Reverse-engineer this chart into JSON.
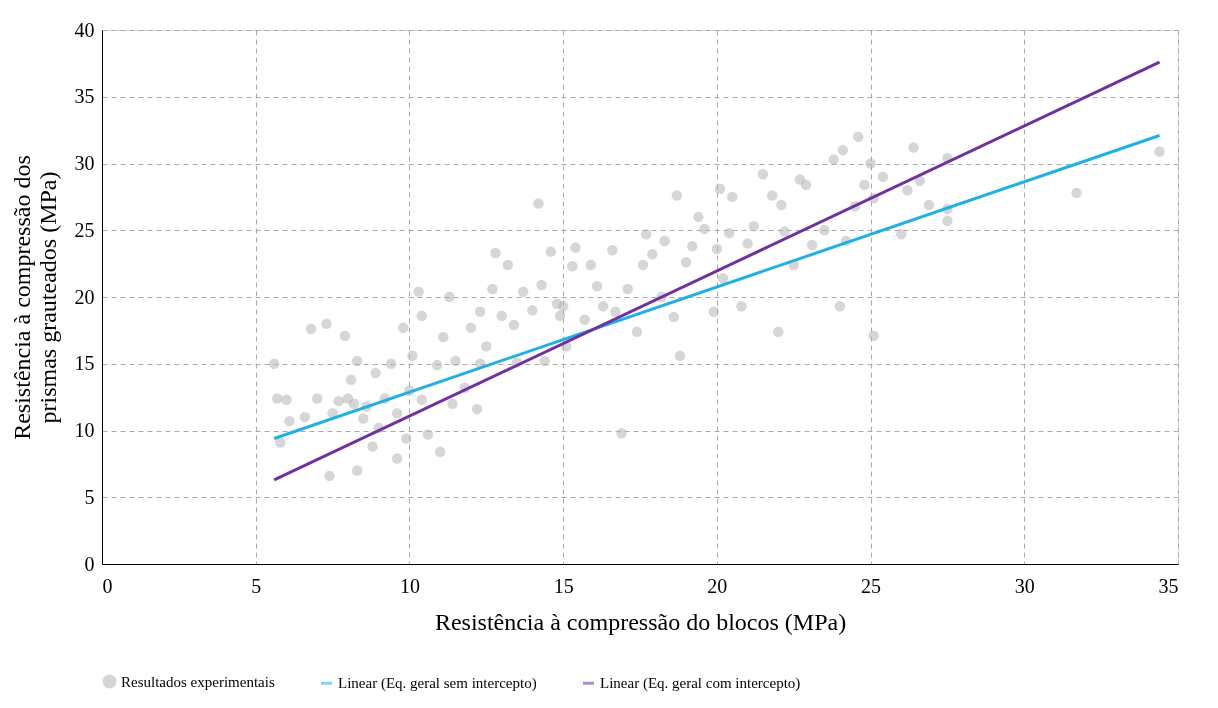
{
  "chart_data": {
    "type": "scatter",
    "xlabel": "Resistência à compressão do blocos (MPa)",
    "ylabel": "Resistência à compressão dos\nprismas grauteados (MPa)",
    "xlim": [
      0,
      35
    ],
    "xticks": [
      0,
      5,
      10,
      15,
      20,
      25,
      30,
      35
    ],
    "ylim": [
      0,
      40
    ],
    "yticks": [
      0,
      5,
      10,
      15,
      20,
      25,
      30,
      35,
      40
    ],
    "grid": true,
    "legend": "bottom",
    "series": [
      {
        "name": "Resultados experimentais",
        "marker": "circle",
        "color": "#b4b4b4",
        "x": [
          5.6,
          5.7,
          5.8,
          6.0,
          6.1,
          6.6,
          6.8,
          7.0,
          7.3,
          7.4,
          7.5,
          7.7,
          7.9,
          8.0,
          8.1,
          8.2,
          8.3,
          8.3,
          8.5,
          8.6,
          8.8,
          8.9,
          9.0,
          9.2,
          9.4,
          9.6,
          9.6,
          9.8,
          9.9,
          10.0,
          10.1,
          10.3,
          10.4,
          10.4,
          10.6,
          10.9,
          11.0,
          11.1,
          11.3,
          11.4,
          11.5,
          11.8,
          12.0,
          12.2,
          12.3,
          12.3,
          12.5,
          12.7,
          12.8,
          13.0,
          13.2,
          13.4,
          13.5,
          13.7,
          14.0,
          14.2,
          14.3,
          14.4,
          14.6,
          14.8,
          14.9,
          15.0,
          15.1,
          15.3,
          15.4,
          15.7,
          15.9,
          16.1,
          16.3,
          16.6,
          16.7,
          16.9,
          17.1,
          17.4,
          17.6,
          17.7,
          17.9,
          18.2,
          18.3,
          18.6,
          18.7,
          18.8,
          19.0,
          19.2,
          19.4,
          19.6,
          19.9,
          20.0,
          20.1,
          20.2,
          20.4,
          20.5,
          20.8,
          21.0,
          21.2,
          21.5,
          21.8,
          22.0,
          22.1,
          22.2,
          22.5,
          22.7,
          22.9,
          23.1,
          23.5,
          23.8,
          24.0,
          24.1,
          24.2,
          24.5,
          24.6,
          24.8,
          25.0,
          25.1,
          25.1,
          25.4,
          26.0,
          26.2,
          26.4,
          26.6,
          26.9,
          27.5,
          27.5,
          27.5,
          31.7,
          34.4
        ],
        "values": [
          15,
          12.4,
          9.1,
          12.3,
          10.7,
          11,
          17.6,
          12.4,
          18,
          6.6,
          11.3,
          12.2,
          17.1,
          12.4,
          13.8,
          12,
          7.0,
          15.2,
          10.9,
          11.8,
          8.8,
          14.3,
          10.2,
          12.4,
          15,
          7.9,
          11.3,
          17.7,
          9.4,
          13.0,
          15.6,
          20.4,
          18.6,
          12.3,
          9.7,
          14.9,
          8.4,
          17.0,
          20.0,
          12.0,
          15.2,
          13.2,
          17.7,
          11.6,
          18.9,
          15.0,
          16.3,
          20.6,
          23.3,
          18.6,
          22.4,
          17.9,
          15.1,
          20.4,
          19.0,
          27.0,
          20.9,
          15.2,
          23.4,
          19.5,
          18.6,
          19.3,
          16.3,
          22.3,
          23.7,
          18.3,
          22.4,
          20.8,
          19.3,
          23.5,
          18.9,
          9.8,
          20.6,
          17.4,
          22.4,
          24.7,
          23.2,
          20.0,
          24.2,
          18.5,
          27.6,
          15.6,
          22.6,
          23.8,
          26.0,
          25.1,
          18.9,
          23.6,
          28.1,
          21.4,
          24.8,
          27.5,
          19.3,
          24.0,
          25.3,
          29.2,
          27.6,
          17.4,
          26.9,
          24.9,
          22.4,
          28.8,
          28.4,
          23.9,
          25.0,
          30.3,
          19.3,
          31.0,
          24.2,
          26.8,
          32.0,
          28.4,
          30.0,
          17.1,
          27.4,
          29.0,
          24.7,
          28.0,
          31.2,
          28.7,
          26.9,
          26.6,
          25.7,
          30.4,
          27.8,
          30.9
        ]
      },
      {
        "name": "Linear (Eq. geral sem intercepto)",
        "type": "line",
        "marker": "none",
        "line_style": "solid",
        "color": "#1fb0e8",
        "x": [
          5.6,
          34.4
        ],
        "values": [
          9.4,
          32.1
        ]
      },
      {
        "name": "Linear (Eq. geral com intercepto)",
        "type": "line",
        "marker": "none",
        "line_style": "solid",
        "color": "#7030a0",
        "x": [
          5.6,
          34.4
        ],
        "values": [
          6.3,
          37.6
        ]
      }
    ]
  }
}
